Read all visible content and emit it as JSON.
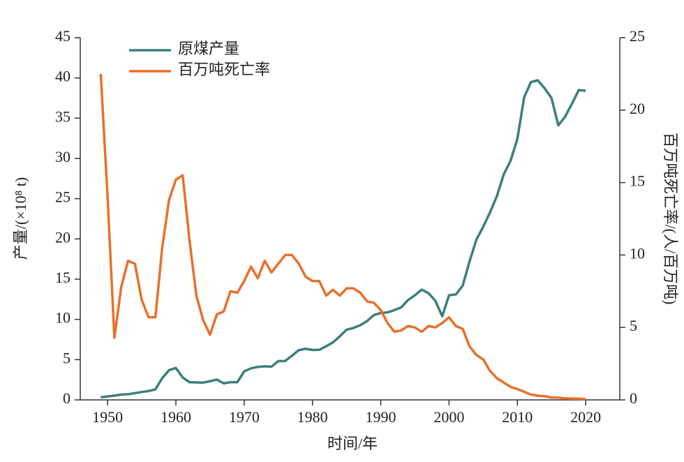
{
  "chart_data": {
    "type": "line",
    "x_label": "时间/年",
    "y_label": "产量/(×10⁸ t)",
    "y2_label": "百万吨死亡率/(人/百万吨)",
    "x": [
      1949,
      1950,
      1951,
      1952,
      1953,
      1954,
      1955,
      1956,
      1957,
      1958,
      1959,
      1960,
      1961,
      1962,
      1963,
      1964,
      1965,
      1966,
      1967,
      1968,
      1969,
      1970,
      1971,
      1972,
      1973,
      1974,
      1975,
      1976,
      1977,
      1978,
      1979,
      1980,
      1981,
      1982,
      1983,
      1984,
      1985,
      1986,
      1987,
      1988,
      1989,
      1990,
      1991,
      1992,
      1993,
      1994,
      1995,
      1996,
      1997,
      1998,
      1999,
      2000,
      2001,
      2002,
      2003,
      2004,
      2005,
      2006,
      2007,
      2008,
      2009,
      2010,
      2011,
      2012,
      2013,
      2014,
      2015,
      2016,
      2017,
      2018,
      2019,
      2020
    ],
    "xlim": [
      1946,
      2025
    ],
    "xticks": [
      1950,
      1960,
      1970,
      1980,
      1990,
      2000,
      2010,
      2020
    ],
    "ylim": [
      0,
      45
    ],
    "yticks": [
      0,
      5,
      10,
      15,
      20,
      25,
      30,
      35,
      40,
      45
    ],
    "y2lim": [
      0,
      25
    ],
    "y2ticks": [
      0,
      5,
      10,
      15,
      20,
      25
    ],
    "legend": "upper left",
    "series": [
      {
        "name": "原煤产量",
        "color": "#3b7f7d",
        "values": [
          0.32,
          0.43,
          0.53,
          0.66,
          0.7,
          0.84,
          0.98,
          1.1,
          1.31,
          2.7,
          3.69,
          3.97,
          2.78,
          2.2,
          2.17,
          2.15,
          2.32,
          2.52,
          2.06,
          2.2,
          2.2,
          3.54,
          3.92,
          4.1,
          4.17,
          4.13,
          4.82,
          4.83,
          5.5,
          6.18,
          6.35,
          6.2,
          6.22,
          6.66,
          7.15,
          7.89,
          8.72,
          8.94,
          9.28,
          9.8,
          10.54,
          10.8,
          10.87,
          11.16,
          11.5,
          12.4,
          13.0,
          13.7,
          13.25,
          12.3,
          10.4,
          13.0,
          13.1,
          14.2,
          17.2,
          19.9,
          21.5,
          23.3,
          25.3,
          28.0,
          29.7,
          32.4,
          37.6,
          39.5,
          39.7,
          38.7,
          37.5,
          34.1,
          35.2,
          36.8,
          38.5,
          38.4
        ]
      },
      {
        "name": "百万吨死亡率",
        "color": "#e8702a",
        "axis": "y2",
        "values": [
          22.5,
          14.0,
          4.3,
          7.8,
          9.6,
          9.4,
          6.9,
          5.7,
          5.7,
          10.5,
          13.8,
          15.2,
          15.5,
          11.0,
          7.2,
          5.5,
          4.5,
          5.9,
          6.1,
          7.5,
          7.4,
          8.2,
          9.2,
          8.4,
          9.6,
          8.8,
          9.4,
          10.0,
          10.0,
          9.4,
          8.5,
          8.2,
          8.2,
          7.2,
          7.6,
          7.2,
          7.7,
          7.7,
          7.4,
          6.8,
          6.7,
          6.2,
          5.3,
          4.7,
          4.8,
          5.1,
          5.0,
          4.7,
          5.1,
          5.0,
          5.3,
          5.7,
          5.1,
          4.9,
          3.7,
          3.1,
          2.8,
          2.0,
          1.5,
          1.2,
          0.9,
          0.75,
          0.56,
          0.37,
          0.29,
          0.26,
          0.16,
          0.16,
          0.11,
          0.09,
          0.08,
          0.06
        ]
      }
    ]
  }
}
